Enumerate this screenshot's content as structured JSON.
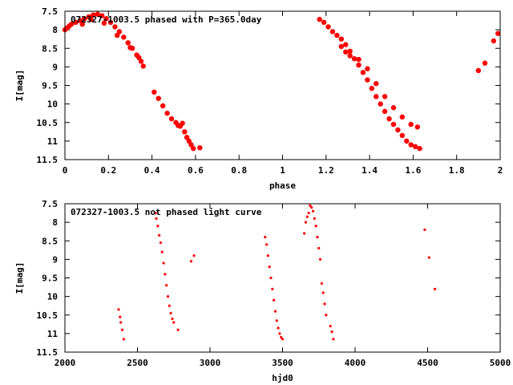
{
  "chart_data": [
    {
      "type": "scatter",
      "title": "072327-1003.5 phased with P=365.0day",
      "xlabel": "phase",
      "ylabel": "I[mag]",
      "xlim": [
        0,
        2
      ],
      "ylim": [
        7.5,
        11.5
      ],
      "y_inverted": true,
      "grid": false,
      "x_ticks": [
        "0",
        "0.2",
        "0.4",
        "0.6",
        "0.8",
        "1",
        "1.2",
        "1.4",
        "1.6",
        "1.8",
        "2"
      ],
      "y_ticks": [
        "7.5",
        "8",
        "8.5",
        "9",
        "9.5",
        "10",
        "10.5",
        "11",
        "11.5"
      ],
      "marker_color": "#ff0000",
      "marker": "filled-circle",
      "points": [
        {
          "x": 0.0,
          "y": 8.0
        },
        {
          "x": 0.01,
          "y": 7.95
        },
        {
          "x": 0.02,
          "y": 7.9
        },
        {
          "x": 0.03,
          "y": 7.85
        },
        {
          "x": 0.05,
          "y": 7.8
        },
        {
          "x": 0.07,
          "y": 7.75
        },
        {
          "x": 0.09,
          "y": 7.7
        },
        {
          "x": 0.11,
          "y": 7.65
        },
        {
          "x": 0.13,
          "y": 7.6
        },
        {
          "x": 0.15,
          "y": 7.58
        },
        {
          "x": 0.17,
          "y": 7.62
        },
        {
          "x": 0.19,
          "y": 7.7
        },
        {
          "x": 0.21,
          "y": 7.8
        },
        {
          "x": 0.23,
          "y": 7.92
        },
        {
          "x": 0.25,
          "y": 8.05
        },
        {
          "x": 0.27,
          "y": 8.2
        },
        {
          "x": 0.29,
          "y": 8.35
        },
        {
          "x": 0.31,
          "y": 8.5
        },
        {
          "x": 0.33,
          "y": 8.68
        },
        {
          "x": 0.35,
          "y": 8.85
        },
        {
          "x": 0.36,
          "y": 8.98
        },
        {
          "x": 0.08,
          "y": 7.85
        },
        {
          "x": 0.12,
          "y": 7.72
        },
        {
          "x": 0.18,
          "y": 7.82
        },
        {
          "x": 0.24,
          "y": 8.15
        },
        {
          "x": 0.3,
          "y": 8.48
        },
        {
          "x": 0.34,
          "y": 8.75
        },
        {
          "x": 0.41,
          "y": 9.68
        },
        {
          "x": 0.43,
          "y": 9.85
        },
        {
          "x": 0.45,
          "y": 10.05
        },
        {
          "x": 0.47,
          "y": 10.25
        },
        {
          "x": 0.49,
          "y": 10.4
        },
        {
          "x": 0.51,
          "y": 10.5
        },
        {
          "x": 0.53,
          "y": 10.6
        },
        {
          "x": 0.55,
          "y": 10.75
        },
        {
          "x": 0.56,
          "y": 10.9
        },
        {
          "x": 0.57,
          "y": 11.0
        },
        {
          "x": 0.58,
          "y": 11.1
        },
        {
          "x": 0.59,
          "y": 11.2
        },
        {
          "x": 0.62,
          "y": 11.18
        },
        {
          "x": 0.54,
          "y": 10.52
        },
        {
          "x": 0.52,
          "y": 10.58
        },
        {
          "x": 1.17,
          "y": 7.72
        },
        {
          "x": 1.19,
          "y": 7.8
        },
        {
          "x": 1.21,
          "y": 7.92
        },
        {
          "x": 1.23,
          "y": 8.05
        },
        {
          "x": 1.25,
          "y": 8.15
        },
        {
          "x": 1.27,
          "y": 8.25
        },
        {
          "x": 1.29,
          "y": 8.4
        },
        {
          "x": 1.31,
          "y": 8.58
        },
        {
          "x": 1.33,
          "y": 8.78
        },
        {
          "x": 1.35,
          "y": 8.95
        },
        {
          "x": 1.37,
          "y": 9.15
        },
        {
          "x": 1.39,
          "y": 9.35
        },
        {
          "x": 1.41,
          "y": 9.58
        },
        {
          "x": 1.43,
          "y": 9.8
        },
        {
          "x": 1.45,
          "y": 10.0
        },
        {
          "x": 1.47,
          "y": 10.2
        },
        {
          "x": 1.49,
          "y": 10.4
        },
        {
          "x": 1.51,
          "y": 10.55
        },
        {
          "x": 1.53,
          "y": 10.7
        },
        {
          "x": 1.55,
          "y": 10.85
        },
        {
          "x": 1.57,
          "y": 11.0
        },
        {
          "x": 1.59,
          "y": 11.1
        },
        {
          "x": 1.61,
          "y": 11.15
        },
        {
          "x": 1.63,
          "y": 11.2
        },
        {
          "x": 1.27,
          "y": 8.45
        },
        {
          "x": 1.29,
          "y": 8.6
        },
        {
          "x": 1.31,
          "y": 8.7
        },
        {
          "x": 1.35,
          "y": 8.8
        },
        {
          "x": 1.39,
          "y": 9.05
        },
        {
          "x": 1.43,
          "y": 9.45
        },
        {
          "x": 1.47,
          "y": 9.8
        },
        {
          "x": 1.51,
          "y": 10.1
        },
        {
          "x": 1.55,
          "y": 10.35
        },
        {
          "x": 1.59,
          "y": 10.55
        },
        {
          "x": 1.62,
          "y": 10.62
        },
        {
          "x": 1.9,
          "y": 9.1
        },
        {
          "x": 1.93,
          "y": 8.9
        },
        {
          "x": 1.97,
          "y": 8.3
        },
        {
          "x": 1.99,
          "y": 8.1
        }
      ]
    },
    {
      "type": "scatter",
      "title": "072327-1003.5 not phased light curve",
      "xlabel": "hjd0",
      "ylabel": "I[mag]",
      "xlim": [
        2000,
        5000
      ],
      "ylim": [
        7.5,
        11.5
      ],
      "y_inverted": true,
      "grid": false,
      "x_ticks": [
        "2000",
        "2500",
        "3000",
        "3500",
        "4000",
        "4500",
        "5000"
      ],
      "y_ticks": [
        "7.5",
        "8",
        "8.5",
        "9",
        "9.5",
        "10",
        "10.5",
        "11",
        "11.5"
      ],
      "marker_color": "#ff0000",
      "marker": "small-dot",
      "points": [
        {
          "x": 2370,
          "y": 10.35
        },
        {
          "x": 2380,
          "y": 10.55
        },
        {
          "x": 2385,
          "y": 10.7
        },
        {
          "x": 2395,
          "y": 10.9
        },
        {
          "x": 2405,
          "y": 11.15
        },
        {
          "x": 2625,
          "y": 7.75
        },
        {
          "x": 2630,
          "y": 7.9
        },
        {
          "x": 2640,
          "y": 8.1
        },
        {
          "x": 2650,
          "y": 8.35
        },
        {
          "x": 2660,
          "y": 8.55
        },
        {
          "x": 2670,
          "y": 8.8
        },
        {
          "x": 2680,
          "y": 9.1
        },
        {
          "x": 2690,
          "y": 9.4
        },
        {
          "x": 2700,
          "y": 9.7
        },
        {
          "x": 2710,
          "y": 10.0
        },
        {
          "x": 2720,
          "y": 10.25
        },
        {
          "x": 2730,
          "y": 10.45
        },
        {
          "x": 2740,
          "y": 10.6
        },
        {
          "x": 2750,
          "y": 10.7
        },
        {
          "x": 2780,
          "y": 10.9
        },
        {
          "x": 2870,
          "y": 9.05
        },
        {
          "x": 2890,
          "y": 8.9
        },
        {
          "x": 3380,
          "y": 8.4
        },
        {
          "x": 3390,
          "y": 8.6
        },
        {
          "x": 3400,
          "y": 8.9
        },
        {
          "x": 3410,
          "y": 9.2
        },
        {
          "x": 3420,
          "y": 9.5
        },
        {
          "x": 3430,
          "y": 9.8
        },
        {
          "x": 3440,
          "y": 10.1
        },
        {
          "x": 3450,
          "y": 10.4
        },
        {
          "x": 3460,
          "y": 10.65
        },
        {
          "x": 3470,
          "y": 10.85
        },
        {
          "x": 3480,
          "y": 11.0
        },
        {
          "x": 3490,
          "y": 11.1
        },
        {
          "x": 3500,
          "y": 11.15
        },
        {
          "x": 3650,
          "y": 8.3
        },
        {
          "x": 3660,
          "y": 8.0
        },
        {
          "x": 3670,
          "y": 7.85
        },
        {
          "x": 3680,
          "y": 7.75
        },
        {
          "x": 3690,
          "y": 7.55
        },
        {
          "x": 3700,
          "y": 7.6
        },
        {
          "x": 3710,
          "y": 7.7
        },
        {
          "x": 3720,
          "y": 7.9
        },
        {
          "x": 3730,
          "y": 8.1
        },
        {
          "x": 3740,
          "y": 8.4
        },
        {
          "x": 3750,
          "y": 8.7
        },
        {
          "x": 3760,
          "y": 9.0
        },
        {
          "x": 3770,
          "y": 9.65
        },
        {
          "x": 3780,
          "y": 9.9
        },
        {
          "x": 3790,
          "y": 10.2
        },
        {
          "x": 3800,
          "y": 10.5
        },
        {
          "x": 3830,
          "y": 10.8
        },
        {
          "x": 3840,
          "y": 10.95
        },
        {
          "x": 3850,
          "y": 11.15
        },
        {
          "x": 4480,
          "y": 8.2
        },
        {
          "x": 4510,
          "y": 8.95
        },
        {
          "x": 4550,
          "y": 9.8
        }
      ]
    }
  ]
}
